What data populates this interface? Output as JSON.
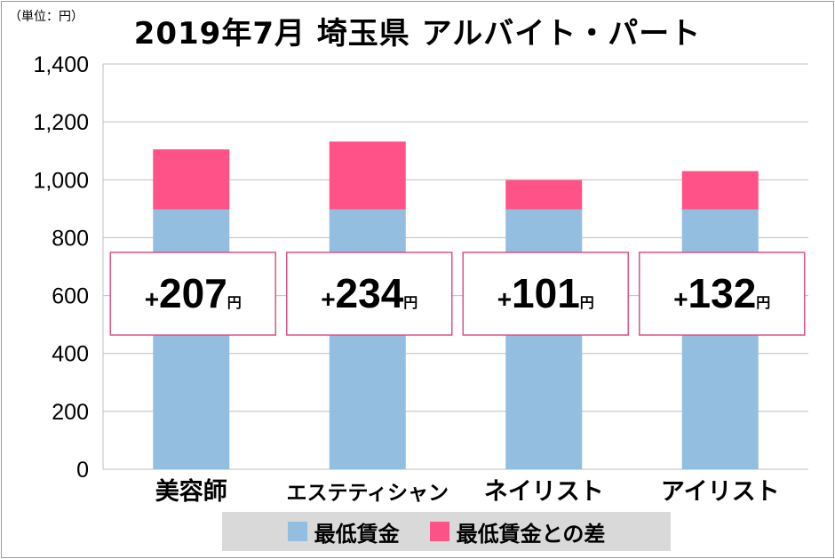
{
  "chart_data": {
    "type": "bar",
    "stacked": true,
    "title": "2019年7月 埼玉県 アルバイト・パート",
    "unit_label": "（単位：円）",
    "categories": [
      "美容師",
      "エステティシャン",
      "ネイリスト",
      "アイリスト"
    ],
    "series": [
      {
        "name": "最低賃金",
        "values": [
          898,
          898,
          898,
          898
        ],
        "color": "#93bedf"
      },
      {
        "name": "最低賃金との差",
        "values": [
          207,
          234,
          101,
          132
        ],
        "color": "#ff5289"
      }
    ],
    "annotations": [
      "+207",
      "+234",
      "+101",
      "+132"
    ],
    "annotation_unit": "円",
    "ylim": [
      0,
      1400
    ],
    "yticks": [
      0,
      200,
      400,
      600,
      800,
      1000,
      1200,
      1400
    ],
    "ytick_labels": [
      "0",
      "200",
      "400",
      "600",
      "800",
      "1,000",
      "1,200",
      "1,400"
    ],
    "grid": true,
    "legend_placement": "bottom"
  }
}
